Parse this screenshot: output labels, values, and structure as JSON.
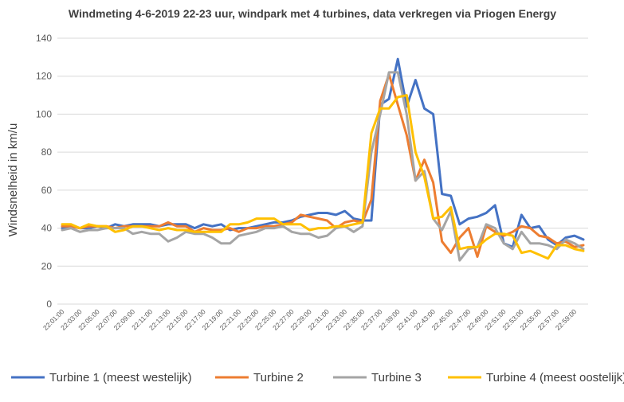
{
  "chart_data": {
    "type": "line",
    "title": "Windmeting 4-6-2019 22-23 uur, windpark met 4 turbines, data verkregen via Priogen Energy",
    "xlabel": "",
    "ylabel": "Windsnelheid in km/u",
    "ylim": [
      0,
      140
    ],
    "yticks": [
      0,
      20,
      40,
      60,
      80,
      100,
      120,
      140
    ],
    "grid": "horizontal",
    "legend": "bottom",
    "categories": [
      "22:01:00",
      "22:02:00",
      "22:03:00",
      "22:04:00",
      "22:05:00",
      "22:06:00",
      "22:07:00",
      "22:08:00",
      "22:09:00",
      "22:10:00",
      "22:11:00",
      "22:12:00",
      "22:13:00",
      "22:14:00",
      "22:15:00",
      "22:16:00",
      "22:17:00",
      "22:18:00",
      "22:19:00",
      "22:20:00",
      "22:21:00",
      "22:22:00",
      "22:23:00",
      "22:24:00",
      "22:25:00",
      "22:26:00",
      "22:27:00",
      "22:28:00",
      "22:29:00",
      "22:30:00",
      "22:31:00",
      "22:32:00",
      "22:33:00",
      "22:34:00",
      "22:35:00",
      "22:36:00",
      "22:37:00",
      "22:38:00",
      "22:39:00",
      "22:40:00",
      "22:41:00",
      "22:42:00",
      "22:43:00",
      "22:44:00",
      "22:45:00",
      "22:46:00",
      "22:47:00",
      "22:48:00",
      "22:49:00",
      "22:50:00",
      "22:51:00",
      "22:52:00",
      "22:53:00",
      "22:54:00",
      "22:55:00",
      "22:56:00",
      "22:57:00",
      "22:58:00",
      "22:59:00",
      "23:00:00"
    ],
    "tick_labels": [
      "22:01:00",
      "22:03:00",
      "22:05:00",
      "22:07:00",
      "22:09:00",
      "22:11:00",
      "22:13:00",
      "22:15:00",
      "22:17:00",
      "22:19:00",
      "22:21:00",
      "22:23:00",
      "22:25:00",
      "22:27:00",
      "22:29:00",
      "22:31:00",
      "22:33:00",
      "22:35:00",
      "22:37:00",
      "22:39:00",
      "22:41:00",
      "22:43:00",
      "22:45:00",
      "22:47:00",
      "22:49:00",
      "22:51:00",
      "22:53:00",
      "22:55:00",
      "22:57:00",
      "22:59:00"
    ],
    "series": [
      {
        "name": "Turbine 1 (meest westelijk)",
        "color": "#4472C4",
        "values": [
          40,
          41,
          40,
          40,
          41,
          40,
          42,
          41,
          42,
          42,
          42,
          41,
          42,
          42,
          42,
          40,
          42,
          41,
          42,
          39,
          40,
          40,
          41,
          42,
          43,
          43,
          44,
          46,
          47,
          48,
          48,
          47,
          49,
          45,
          44,
          44,
          105,
          108,
          129,
          104,
          118,
          103,
          100,
          58,
          57,
          42,
          45,
          46,
          48,
          52,
          32,
          30,
          47,
          40,
          41,
          34,
          31,
          35,
          36,
          34
        ]
      },
      {
        "name": "Turbine 2",
        "color": "#ED7D31",
        "values": [
          41,
          41,
          40,
          41,
          41,
          41,
          40,
          41,
          41,
          41,
          41,
          41,
          43,
          41,
          41,
          38,
          40,
          39,
          39,
          40,
          38,
          40,
          40,
          41,
          41,
          42,
          43,
          47,
          46,
          45,
          44,
          40,
          43,
          44,
          43,
          55,
          107,
          121,
          105,
          89,
          65,
          76,
          64,
          33,
          27,
          35,
          40,
          25,
          41,
          38,
          36,
          38,
          41,
          40,
          36,
          35,
          32,
          33,
          30,
          31
        ]
      },
      {
        "name": "Turbine 3",
        "color": "#A5A5A5",
        "values": [
          39,
          40,
          38,
          39,
          39,
          40,
          40,
          40,
          37,
          38,
          37,
          37,
          33,
          35,
          38,
          37,
          37,
          35,
          32,
          32,
          36,
          37,
          38,
          40,
          40,
          41,
          38,
          37,
          37,
          35,
          36,
          40,
          41,
          38,
          41,
          80,
          100,
          122,
          122,
          100,
          65,
          70,
          45,
          39,
          49,
          23,
          29,
          30,
          42,
          40,
          32,
          29,
          38,
          32,
          32,
          31,
          29,
          34,
          32,
          29
        ]
      },
      {
        "name": "Turbine 4 (meest oostelijk)",
        "color": "#FFC000",
        "values": [
          42,
          42,
          40,
          42,
          41,
          41,
          38,
          39,
          41,
          41,
          40,
          39,
          40,
          39,
          39,
          38,
          38,
          38,
          38,
          42,
          42,
          43,
          45,
          45,
          45,
          42,
          42,
          42,
          39,
          40,
          40,
          41,
          41,
          42,
          43,
          90,
          103,
          103,
          109,
          110,
          80,
          67,
          45,
          46,
          51,
          29,
          30,
          30,
          34,
          37,
          37,
          36,
          27,
          28,
          26,
          24,
          31,
          31,
          29,
          28
        ]
      }
    ]
  }
}
